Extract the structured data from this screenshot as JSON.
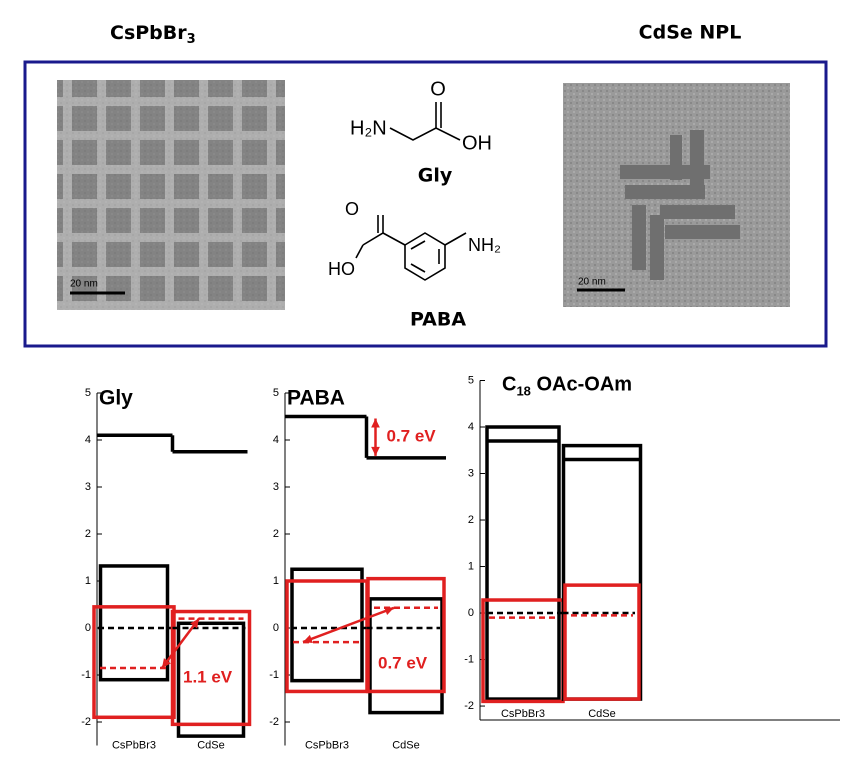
{
  "header": {
    "left_title": {
      "main": "CsPbBr",
      "sub": "3"
    },
    "right_title": "CdSe NPL"
  },
  "images": {
    "left_scale": "20 nm",
    "right_scale": "20 nm"
  },
  "molecules": {
    "gly": {
      "amine": "H₂N",
      "carbonyl": "O",
      "hydroxyl": "OH",
      "name": "Gly"
    },
    "paba": {
      "hydroxyl": "HO",
      "carbonyl": "O",
      "amine": "NH₂",
      "name": "PABA"
    }
  },
  "chart_data": [
    {
      "type": "band",
      "title": "Gly",
      "categories": [
        "CsPbBr3",
        "CdSe"
      ],
      "ylim": [
        -2.5,
        5
      ],
      "yticks": [
        -2,
        -1,
        0,
        1,
        2,
        3,
        4,
        5
      ],
      "cb": [
        4.1,
        3.75
      ],
      "box_top": [
        1.32,
        0.1
      ],
      "box_bottom": [
        -1.1,
        -2.3
      ],
      "ef": [
        0,
        0
      ],
      "red_top": [
        0.45,
        0.35
      ],
      "red_bottom": [
        -1.9,
        -2.05
      ],
      "red_ef": [
        -0.85,
        0.2
      ],
      "color": "#000000",
      "red_color": "#e02020",
      "gap_label": "1.1 eV"
    },
    {
      "type": "band",
      "title": "PABA",
      "categories": [
        "CsPbBr3",
        "CdSe"
      ],
      "ylim": [
        -2.5,
        5
      ],
      "yticks": [
        -2,
        -1,
        0,
        1,
        2,
        3,
        4,
        5
      ],
      "cb": [
        4.5,
        3.62
      ],
      "box_top": [
        1.25,
        0.62
      ],
      "box_bottom": [
        -1.12,
        -1.8
      ],
      "ef": [
        0,
        0
      ],
      "red_top": [
        1.0,
        1.05
      ],
      "red_bottom": [
        -1.35,
        -1.35
      ],
      "red_ef": [
        -0.3,
        0.43
      ],
      "color": "#000000",
      "red_color": "#e02020",
      "gap_label": "0.7 eV",
      "offset_label": "0.7 eV"
    },
    {
      "type": "band",
      "title": {
        "main": "C",
        "sub": "18",
        "rest": " OAc-OAm"
      },
      "categories": [
        "CsPbBr3",
        "CdSe"
      ],
      "ylim": [
        -2.3,
        5
      ],
      "yticks": [
        -2,
        -1,
        0,
        1,
        2,
        3,
        4,
        5
      ],
      "box_top": [
        4.0,
        3.6
      ],
      "box_inner": [
        3.7,
        3.3
      ],
      "box_bottom": [
        -1.85,
        -1.85
      ],
      "ef": [
        0,
        0
      ],
      "red_top": [
        0.28,
        0.6
      ],
      "red_bottom": [
        -1.9,
        -1.85
      ],
      "red_ef": [
        -0.1,
        -0.05
      ],
      "color": "#000000",
      "red_color": "#e02020"
    }
  ]
}
